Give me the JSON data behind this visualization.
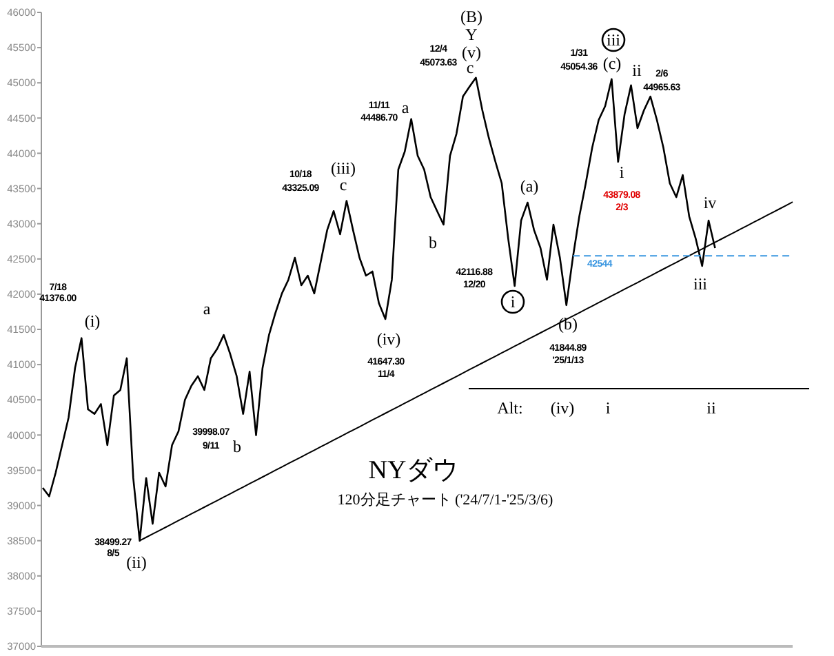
{
  "chart_data": {
    "type": "line",
    "title": "NYダウ",
    "subtitle": "120分足チャート ('24/7/1-'25/3/6)",
    "categories": [
      null,
      null,
      null,
      null,
      null,
      null,
      null,
      null,
      null,
      null,
      null,
      null,
      null,
      null,
      null,
      null,
      null,
      null,
      null,
      null,
      null,
      null,
      null,
      null,
      null,
      null,
      null,
      null,
      null,
      null,
      null,
      null,
      null,
      null,
      null,
      null,
      null,
      null,
      null,
      null,
      null,
      null,
      null,
      null,
      null,
      null,
      null,
      null,
      null,
      null,
      null,
      null,
      null,
      null,
      null,
      null,
      null,
      null,
      null,
      null,
      null,
      null,
      null,
      null,
      null,
      null,
      null,
      null,
      null,
      null,
      null,
      null,
      null,
      null,
      null,
      null,
      null,
      null,
      null,
      null,
      null,
      null,
      null,
      null,
      null,
      null,
      null,
      null,
      null,
      null,
      null,
      null,
      null,
      null,
      null,
      null,
      null,
      null,
      null,
      null,
      null,
      null,
      null,
      null,
      null,
      null,
      null,
      null,
      null,
      null,
      null,
      null,
      null,
      null,
      null,
      null,
      null
    ],
    "ylim": [
      37000,
      46000
    ],
    "yticks": [
      37000,
      37500,
      38000,
      38500,
      39000,
      39500,
      40000,
      40500,
      41000,
      41500,
      42000,
      42500,
      43000,
      43500,
      44000,
      44500,
      45000,
      45500,
      46000
    ],
    "tick_labels": "y",
    "series": [
      {
        "color": "#000000",
        "values": [
          39250,
          39130,
          39465,
          39857,
          40248,
          40952,
          41376,
          40365,
          40300,
          40440,
          39857,
          40560,
          40640,
          41090,
          39390,
          38499,
          39390,
          38740,
          39465,
          39270,
          39857,
          40052,
          40500,
          40700,
          40835,
          40640,
          41090,
          41226,
          41420,
          41150,
          40835,
          40300,
          40900,
          39998,
          40950,
          41420,
          41735,
          42010,
          42205,
          42517,
          42126,
          42263,
          42010,
          42459,
          42910,
          43180,
          42850,
          43325,
          42910,
          42517,
          42263,
          42322,
          41872,
          41647,
          42205,
          43770,
          44024,
          44486,
          43965,
          43770,
          43378,
          43180,
          42987,
          43965,
          44278,
          44806,
          44943,
          45073,
          44611,
          44220,
          43887,
          43574,
          42791,
          42116,
          43046,
          43300,
          42910,
          42654,
          42205,
          42987,
          42517,
          41844,
          42517,
          43104,
          43574,
          44083,
          44474,
          44670,
          45054,
          43879,
          44552,
          44966,
          44357,
          44611,
          44806,
          44474,
          44083,
          43574,
          43378,
          43691,
          43104,
          42791,
          42400,
          43046,
          42654,
          null,
          null,
          null,
          null,
          null,
          null,
          null,
          null,
          null,
          null,
          null,
          null
        ]
      },
      {
        "type": "line",
        "color": "#000000",
        "values": [
          null,
          null,
          null,
          null,
          null,
          null,
          null,
          null,
          null,
          null,
          null,
          null,
          null,
          null,
          null,
          38500,
          38548,
          38595,
          38643,
          38690,
          38738,
          38786,
          38833,
          38881,
          38928,
          38976,
          39024,
          39071,
          39119,
          39166,
          39214,
          39262,
          39309,
          39357,
          39404,
          39452,
          39500,
          39547,
          39595,
          39642,
          39690,
          39738,
          39785,
          39833,
          39880,
          39928,
          39976,
          40023,
          40071,
          40118,
          40166,
          40214,
          40261,
          40309,
          40356,
          40404,
          40452,
          40499,
          40547,
          40594,
          40642,
          40690,
          40737,
          40785,
          40832,
          40880,
          40928,
          40975,
          41023,
          41070,
          41118,
          41166,
          41213,
          41261,
          41308,
          41356,
          41404,
          41451,
          41499,
          41546,
          41594,
          41642,
          41689,
          41737,
          41784,
          41832,
          41880,
          41927,
          41975,
          42022,
          42070,
          42118,
          42165,
          42213,
          42260,
          42308,
          42356,
          42403,
          42451,
          42498,
          42546,
          42594,
          42641,
          42689,
          42736,
          42784,
          42832,
          42879,
          42927,
          42974,
          43022,
          43070,
          43117,
          43165,
          43212,
          43260,
          43308
        ]
      },
      {
        "type": "line",
        "color": "#3a96e0",
        "line_style": "dashed",
        "values": [
          null,
          null,
          null,
          null,
          null,
          null,
          null,
          null,
          null,
          null,
          null,
          null,
          null,
          null,
          null,
          null,
          null,
          null,
          null,
          null,
          null,
          null,
          null,
          null,
          null,
          null,
          null,
          null,
          null,
          null,
          null,
          null,
          null,
          null,
          null,
          null,
          null,
          null,
          null,
          null,
          null,
          null,
          null,
          null,
          null,
          null,
          null,
          null,
          null,
          null,
          null,
          null,
          null,
          null,
          null,
          null,
          null,
          null,
          null,
          null,
          null,
          null,
          null,
          null,
          null,
          null,
          null,
          null,
          null,
          null,
          null,
          null,
          null,
          null,
          null,
          null,
          null,
          null,
          null,
          null,
          null,
          null,
          42544,
          42544,
          42544,
          42544,
          42544,
          42544,
          42544,
          42544,
          42544,
          42544,
          42544,
          42544,
          42544,
          42544,
          42544,
          42544,
          42544,
          42544,
          42544,
          42544,
          42544,
          42544,
          42544,
          42544,
          42544,
          42544,
          42544,
          42544,
          42544,
          42544,
          42544,
          42544,
          42544,
          42544,
          42544
        ]
      }
    ],
    "annotations": [
      "7/18",
      "41376.00",
      "(i)",
      "(ii)",
      "38499.27",
      "8/5",
      "a",
      "39998.07",
      "9/11",
      "b",
      "10/18",
      "43325.09",
      "(iii)",
      "c",
      "11/11",
      "44486.70",
      "a",
      "b",
      "(iv)",
      "41647.30",
      "11/4",
      "12/4",
      "45073.63",
      "(B)",
      "Y",
      "(v)",
      "c",
      "(a)",
      "42116.88",
      "12/20",
      "i",
      "(b)",
      "41844.89",
      "'25/1/13",
      "iii",
      "(c)",
      "1/31",
      "45054.36",
      "ii",
      "2/6",
      "44965.63",
      "i",
      "43879.08",
      "2/3",
      "iv",
      "iii",
      "42544",
      "Alt:",
      "(iv)",
      "i",
      "ii"
    ]
  }
}
